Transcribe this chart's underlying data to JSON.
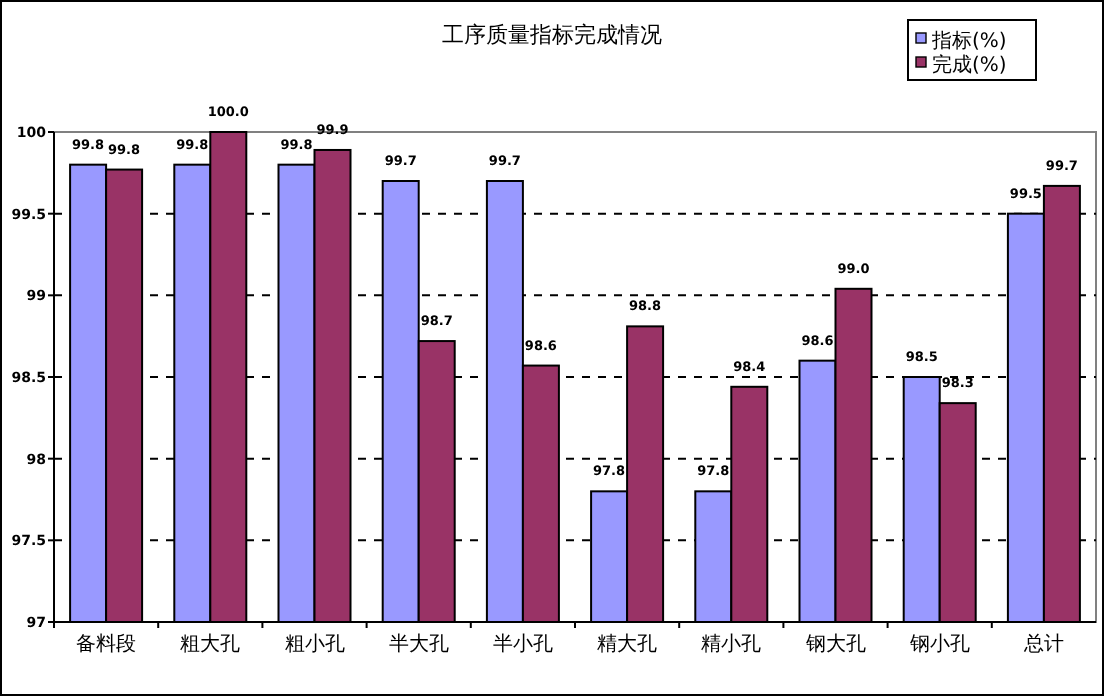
{
  "chart_data": {
    "type": "bar",
    "title": "工序质量指标完成情况",
    "categories": [
      "备料段",
      "粗大孔",
      "粗小孔",
      "半大孔",
      "半小孔",
      "精大孔",
      "精小孔",
      "钢大孔",
      "钢小孔",
      "总计"
    ],
    "series": [
      {
        "name": "指标(%)",
        "color": "#9999ff",
        "values": [
          99.8,
          99.8,
          99.8,
          99.7,
          99.7,
          97.8,
          97.8,
          98.6,
          98.5,
          99.5
        ],
        "value_labels": [
          "99.8",
          "99.8",
          "99.8",
          "99.7",
          "99.7",
          "97.8",
          "97.8",
          "98.6",
          "98.5",
          "99.5"
        ]
      },
      {
        "name": "完成(%)",
        "color": "#993366",
        "values": [
          99.77,
          100.0,
          99.89,
          98.72,
          98.57,
          98.81,
          98.44,
          99.04,
          98.34,
          99.67
        ],
        "value_labels": [
          "99.8",
          "100.0",
          "99.9",
          "98.7",
          "98.6",
          "98.8",
          "98.4",
          "99.0",
          "98.3",
          "99.7"
        ]
      }
    ],
    "ylim": [
      97,
      100
    ],
    "yticks": [
      97,
      97.5,
      98,
      98.5,
      99,
      99.5,
      100
    ],
    "grid": "y",
    "legend": "top right"
  }
}
